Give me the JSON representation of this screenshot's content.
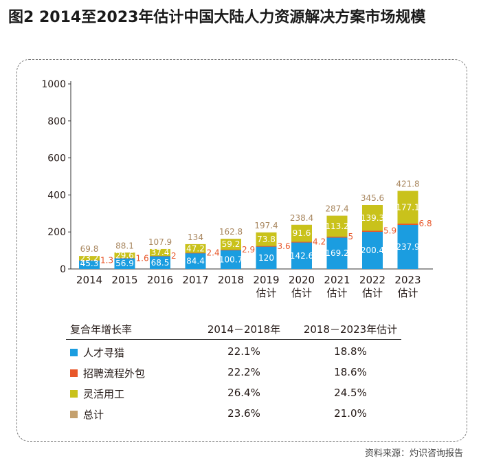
{
  "title": "图2  2014至2023年估计中国大陆人力资源解决方案市场规模",
  "source": "资料来源：灼识咨询报告",
  "colors": {
    "talent": "#1b9de0",
    "outsourcing": "#e8572a",
    "flexible": "#c9c21b",
    "total": "#c4a06e",
    "total_label": "#a8865e",
    "axis": "#333333"
  },
  "chart_data": {
    "type": "bar",
    "stacked": true,
    "categories": [
      "2014",
      "2015",
      "2016",
      "2017",
      "2018",
      "2019\n估计",
      "2020\n估计",
      "2021\n估计",
      "2022\n估计",
      "2023\n估计"
    ],
    "series": [
      {
        "name": "人才寻猎",
        "values": [
          45.3,
          56.9,
          68.5,
          84.4,
          100.7,
          120,
          142.6,
          169.2,
          200.4,
          237.9
        ]
      },
      {
        "name": "招聘流程外包",
        "values": [
          1.3,
          1.6,
          2,
          2.4,
          2.9,
          3.6,
          4.2,
          5,
          5.9,
          6.8
        ]
      },
      {
        "name": "灵活用工",
        "values": [
          23.2,
          29.6,
          37.4,
          47.2,
          59.2,
          73.8,
          91.6,
          113.2,
          139.3,
          177.1
        ]
      },
      {
        "name": "总计",
        "values": [
          69.8,
          88.1,
          107.9,
          134,
          162.8,
          197.4,
          238.4,
          287.4,
          345.6,
          421.8
        ]
      }
    ],
    "yticks": [
      0,
      200,
      400,
      600,
      800,
      1000
    ],
    "ylim": [
      0,
      1000
    ],
    "grid": false,
    "title": "",
    "xlabel": "",
    "ylabel": ""
  },
  "legend_table": {
    "header": [
      "复合年增长率",
      "2014－2018年",
      "2018－2023年估计"
    ],
    "rows": [
      {
        "name": "人才寻猎",
        "cagr1": "22.1%",
        "cagr2": "18.8%",
        "color": "#1b9de0"
      },
      {
        "name": "招聘流程外包",
        "cagr1": "22.2%",
        "cagr2": "18.6%",
        "color": "#e8572a"
      },
      {
        "name": "灵活用工",
        "cagr1": "26.4%",
        "cagr2": "24.5%",
        "color": "#c9c21b"
      },
      {
        "name": "总计",
        "cagr1": "23.6%",
        "cagr2": "21.0%",
        "color": "#c4a06e"
      }
    ]
  }
}
